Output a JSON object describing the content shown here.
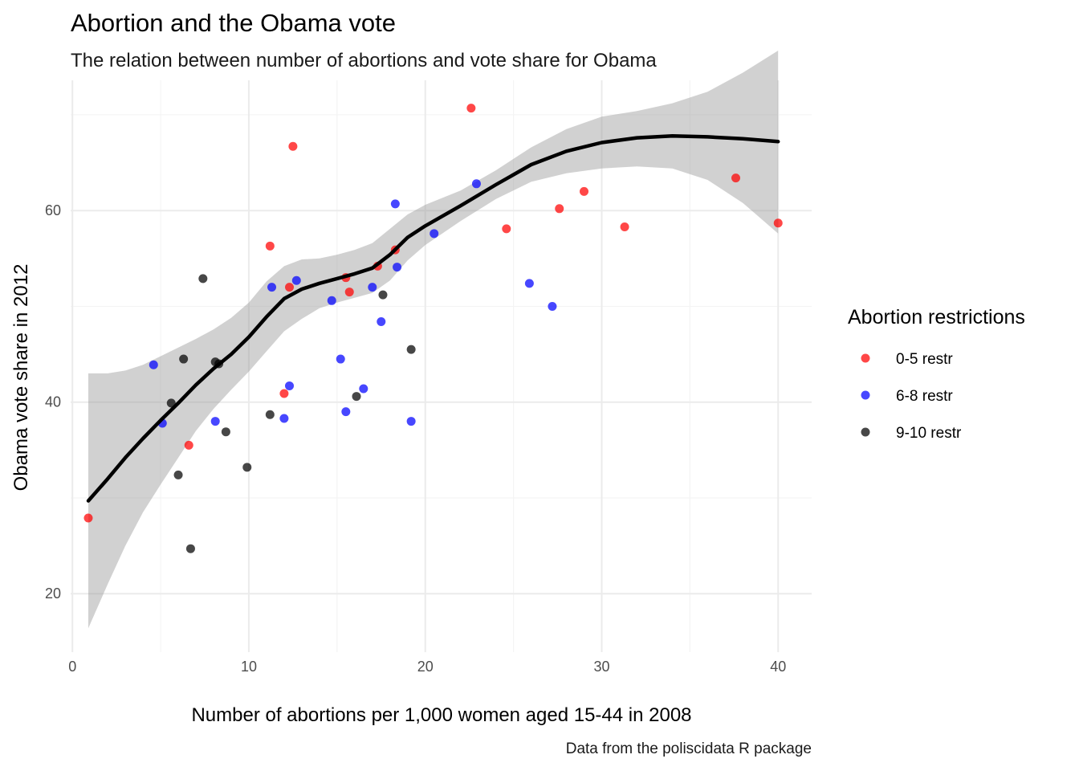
{
  "chart_data": {
    "type": "scatter",
    "title": "Abortion and the Obama vote",
    "subtitle": "The relation between number of abortions and vote share for Obama",
    "xlabel": "Number of abortions per 1,000 women aged 15-44 in 2008",
    "ylabel": "Obama vote share in 2012",
    "caption": "Data from the poliscidata R package",
    "xlim": [
      -0.1,
      41.9
    ],
    "ylim": [
      13.9,
      73.6
    ],
    "x_ticks": [
      0,
      10,
      20,
      30,
      40
    ],
    "y_ticks": [
      20,
      40,
      60
    ],
    "x_tick_labels": [
      "0",
      "10",
      "20",
      "30",
      "40"
    ],
    "y_tick_labels": [
      "20",
      "40",
      "60"
    ],
    "grid": true,
    "legend": {
      "title": "Abortion restrictions",
      "position": "right"
    },
    "series": [
      {
        "name": "0-5 restr",
        "color": "#ff0000",
        "points": [
          [
            0.9,
            27.9
          ],
          [
            6.6,
            35.5
          ],
          [
            11.2,
            56.3
          ],
          [
            12.0,
            40.9
          ],
          [
            12.3,
            52.0
          ],
          [
            12.5,
            66.7
          ],
          [
            15.5,
            53.0
          ],
          [
            15.7,
            51.5
          ],
          [
            17.3,
            54.2
          ],
          [
            18.3,
            55.9
          ],
          [
            22.6,
            70.7
          ],
          [
            24.6,
            58.1
          ],
          [
            27.6,
            60.2
          ],
          [
            29.0,
            62.0
          ],
          [
            31.3,
            58.3
          ],
          [
            37.6,
            63.4
          ],
          [
            40.0,
            58.7
          ]
        ]
      },
      {
        "name": "6-8 restr",
        "color": "#0000ff",
        "points": [
          [
            4.6,
            43.9
          ],
          [
            5.1,
            37.8
          ],
          [
            8.1,
            38.0
          ],
          [
            11.3,
            52.0
          ],
          [
            12.0,
            38.3
          ],
          [
            12.3,
            41.7
          ],
          [
            12.7,
            52.7
          ],
          [
            14.7,
            50.6
          ],
          [
            15.2,
            44.5
          ],
          [
            15.5,
            39.0
          ],
          [
            16.5,
            41.4
          ],
          [
            17.0,
            52.0
          ],
          [
            17.5,
            48.4
          ],
          [
            18.3,
            60.7
          ],
          [
            18.4,
            54.1
          ],
          [
            19.2,
            38.0
          ],
          [
            20.5,
            57.6
          ],
          [
            22.9,
            62.8
          ],
          [
            25.9,
            52.4
          ],
          [
            27.2,
            50.0
          ]
        ]
      },
      {
        "name": "9-10 restr",
        "color": "#000000",
        "points": [
          [
            5.6,
            39.9
          ],
          [
            6.0,
            32.4
          ],
          [
            6.3,
            44.5
          ],
          [
            6.7,
            24.7
          ],
          [
            7.4,
            52.9
          ],
          [
            8.1,
            44.2
          ],
          [
            8.3,
            44.0
          ],
          [
            8.7,
            36.9
          ],
          [
            9.9,
            33.2
          ],
          [
            11.2,
            38.7
          ],
          [
            16.1,
            40.6
          ],
          [
            17.6,
            51.2
          ],
          [
            19.2,
            45.5
          ]
        ]
      }
    ],
    "smooth": {
      "color": "#000000",
      "band_color": "#999999",
      "points": [
        [
          0.9,
          29.7,
          16.4,
          43.0
        ],
        [
          2,
          32.0,
          21.0,
          43.0
        ],
        [
          3,
          34.2,
          25.0,
          43.3
        ],
        [
          4,
          36.2,
          28.5,
          43.9
        ],
        [
          5,
          38.1,
          31.4,
          44.8
        ],
        [
          6,
          39.9,
          34.2,
          45.7
        ],
        [
          7,
          41.8,
          37.0,
          46.6
        ],
        [
          8,
          43.5,
          39.3,
          47.6
        ],
        [
          9,
          45.0,
          41.3,
          48.8
        ],
        [
          10,
          46.8,
          43.2,
          50.4
        ],
        [
          11,
          48.9,
          45.3,
          52.6
        ],
        [
          12,
          50.8,
          47.4,
          54.2
        ],
        [
          13,
          51.8,
          48.7,
          54.9
        ],
        [
          14,
          52.4,
          49.8,
          55.0
        ],
        [
          15,
          52.9,
          50.4,
          55.4
        ],
        [
          16,
          53.4,
          50.9,
          55.9
        ],
        [
          17,
          54.0,
          51.4,
          56.6
        ],
        [
          18,
          55.4,
          52.7,
          58.1
        ],
        [
          19,
          57.2,
          54.8,
          59.6
        ],
        [
          20,
          58.4,
          56.4,
          60.6
        ],
        [
          22,
          60.5,
          58.9,
          62.1
        ],
        [
          24,
          62.7,
          61.2,
          64.2
        ],
        [
          26,
          64.8,
          63.0,
          66.6
        ],
        [
          28,
          66.2,
          63.9,
          68.5
        ],
        [
          30,
          67.1,
          64.4,
          69.8
        ],
        [
          32,
          67.6,
          64.6,
          70.4
        ],
        [
          34,
          67.8,
          64.4,
          71.2
        ],
        [
          36,
          67.7,
          63.2,
          72.4
        ],
        [
          38,
          67.5,
          60.8,
          74.4
        ],
        [
          40,
          67.2,
          57.6,
          76.7
        ]
      ]
    }
  }
}
